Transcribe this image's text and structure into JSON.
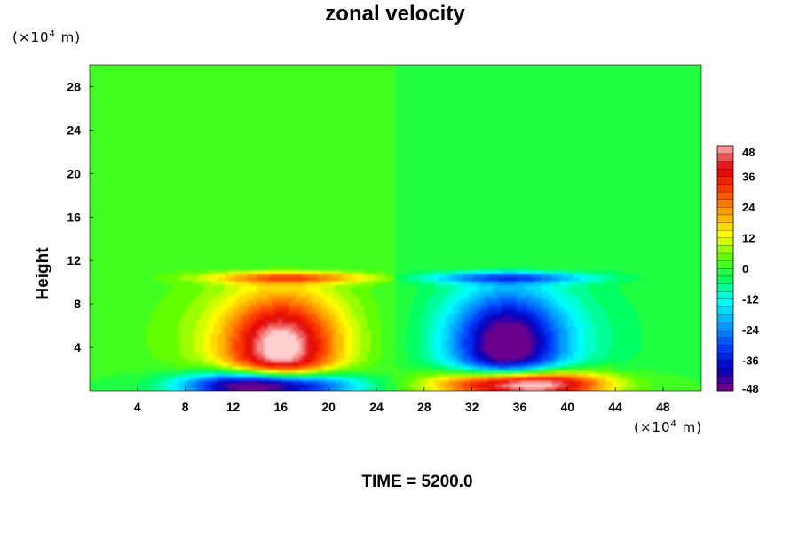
{
  "chart_data": {
    "type": "heatmap",
    "title": "zonal velocity",
    "xlabel": "",
    "ylabel": "Height",
    "x_unit": {
      "base": "(×10",
      "exp": "4",
      "tail": " m)"
    },
    "y_unit": {
      "base": "(×10",
      "exp": "4",
      "tail": " m)"
    },
    "xlim": [
      0,
      51.2
    ],
    "ylim": [
      0,
      30
    ],
    "x_ticks": [
      "4",
      "8",
      "12",
      "16",
      "20",
      "24",
      "28",
      "32",
      "36",
      "40",
      "44",
      "48"
    ],
    "y_ticks": [
      "4",
      "8",
      "12",
      "16",
      "20",
      "24",
      "28"
    ],
    "colorbar": {
      "ticks": [
        "48",
        "36",
        "24",
        "12",
        "0",
        "-12",
        "-24",
        "-36",
        "-48"
      ],
      "range": [
        -48,
        48
      ],
      "levels": 32,
      "colormap": [
        "#800080",
        "#0000c0",
        "#0040ff",
        "#00a0ff",
        "#00ffff",
        "#00ff60",
        "#60ff00",
        "#ffff00",
        "#ffa000",
        "#ff4000",
        "#e00000",
        "#ffb0b0"
      ]
    },
    "features": [
      {
        "name": "positive jet core",
        "x": 16,
        "y": 3.8,
        "value": 40
      },
      {
        "name": "negative jet core",
        "x": 35,
        "y": 4.2,
        "value": -40
      },
      {
        "name": "surface negative region",
        "x": 15,
        "y": 0.5,
        "value": -48
      },
      {
        "name": "surface positive region",
        "x": 36,
        "y": 0.6,
        "value": 48
      }
    ],
    "footer": "TIME = 5200.0"
  }
}
